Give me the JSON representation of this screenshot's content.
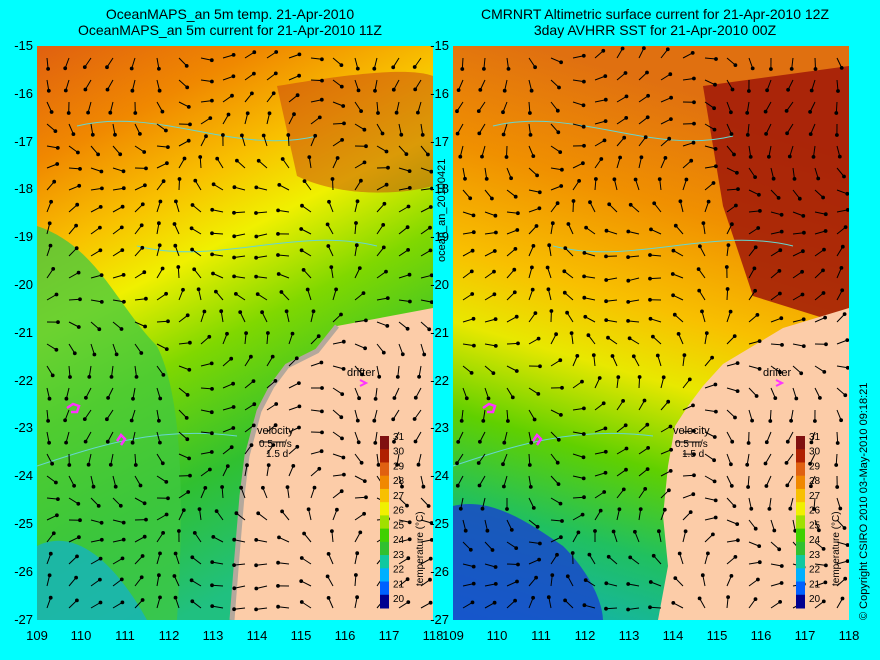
{
  "left_panel": {
    "title_line1": "OceanMAPS_an 5m temp. 21-Apr-2010",
    "title_line2": "OceanMAPS_an 5m current for 21-Apr-2010 11Z"
  },
  "right_panel": {
    "title_line1": "CMRNRT Altimetric surface current for 21-Apr-2010 12Z",
    "title_line2": "3day AVHRR SST for 21-Apr-2010 00Z"
  },
  "latitude_ticks": [
    "-15",
    "-16",
    "-17",
    "-18",
    "-19",
    "-20",
    "-21",
    "-22",
    "-23",
    "-24",
    "-25",
    "-26",
    "-27"
  ],
  "longitude_ticks": [
    "109",
    "110",
    "111",
    "112",
    "113",
    "114",
    "115",
    "116",
    "117",
    "118"
  ],
  "middle_label": "ocean_an_20100421",
  "right_vertical_label": "© Copyright CSIRO 2010   03-May-2010 09:18:21",
  "legend": {
    "drifter_label": "drifter",
    "velocity_label": "velocity",
    "velocity_scale": "0.5 m/s",
    "velocity_time": "1.5 d",
    "colorbar_title": "temperature (°C)",
    "colorbar_ticks": [
      "31",
      "30",
      "29",
      "28",
      "27",
      "26",
      "25",
      "24",
      "23",
      "22",
      "21",
      "20"
    ]
  },
  "colors": {
    "background": "#00ffff",
    "land": "#fccca8",
    "coastline_gray": "#b4a89c",
    "arrow": "#000000",
    "isobath": "#66d6d0",
    "drifter_track": "#ff33ff"
  },
  "colorbar_colors": [
    "#000090",
    "#0060ff",
    "#00b0ff",
    "#10c8a0",
    "#30c030",
    "#40d000",
    "#a0e000",
    "#f0f000",
    "#f8c000",
    "#f08800",
    "#e06010",
    "#b02000",
    "#801010"
  ]
}
